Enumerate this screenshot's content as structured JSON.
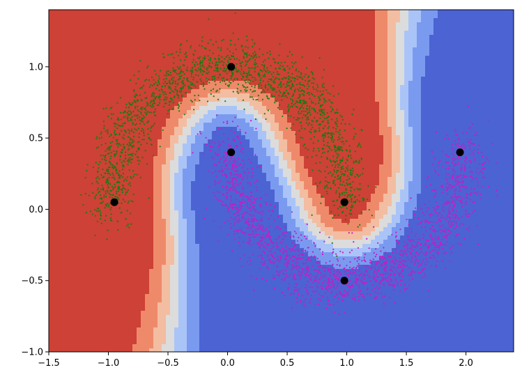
{
  "chart_data": {
    "type": "scatter",
    "title": "",
    "xlabel": "",
    "ylabel": "",
    "xlim": [
      -1.5,
      2.4
    ],
    "ylim": [
      -1.0,
      1.4
    ],
    "x_ticks": [
      -1.5,
      -1.0,
      -0.5,
      0.0,
      0.5,
      1.0,
      1.5,
      2.0
    ],
    "x_tick_labels": [
      "−1.5",
      "−1.0",
      "−0.5",
      "0.0",
      "0.5",
      "1.0",
      "1.5",
      "2.0"
    ],
    "y_ticks": [
      -1.0,
      -0.5,
      0.0,
      0.5,
      1.0
    ],
    "y_tick_labels": [
      "−1.0",
      "−0.5",
      "0.0",
      "0.5",
      "1.0"
    ],
    "grid": false,
    "legend": "none",
    "background": {
      "kind": "filled-contour decision boundary",
      "colormap": "coolwarm",
      "levels": [
        {
          "level": 0,
          "color": "#4c63d3"
        },
        {
          "level": 1,
          "color": "#7a9af0"
        },
        {
          "level": 2,
          "color": "#aac4f8"
        },
        {
          "level": 3,
          "color": "#dcdcdc"
        },
        {
          "level": 4,
          "color": "#f3bda2"
        },
        {
          "level": 5,
          "color": "#ee8a6a"
        },
        {
          "level": 6,
          "color": "#cd4136"
        }
      ]
    },
    "series": [
      {
        "color": "#1a7a0e",
        "marker": "small dots",
        "shape": "upper moon arc",
        "center": [
          0.0,
          0.0
        ],
        "radius": 1.0,
        "angle_range_deg": [
          0,
          180
        ],
        "noise": 0.1,
        "approx_points": 5000
      },
      {
        "color": "#c41cc4",
        "marker": "small dots",
        "shape": "lower moon arc",
        "center": [
          1.0,
          0.5
        ],
        "radius": 1.0,
        "angle_range_deg": [
          180,
          360
        ],
        "noise": 0.1,
        "approx_points": 5000
      },
      {
        "color": "#000000",
        "marker": "large circles",
        "points": [
          [
            -0.95,
            0.05
          ],
          [
            0.03,
            1.0
          ],
          [
            0.03,
            0.4
          ],
          [
            0.98,
            0.05
          ],
          [
            0.98,
            -0.5
          ],
          [
            1.95,
            0.4
          ]
        ]
      }
    ]
  }
}
